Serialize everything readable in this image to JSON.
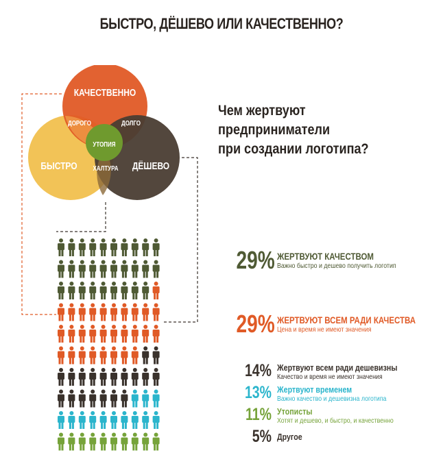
{
  "title": "БЫСТРО, ДЁШЕВО ИЛИ КАЧЕСТВЕННО?",
  "question": [
    "Чем жертвуют предприниматели",
    "при создании логотипа?"
  ],
  "colors": {
    "quality": "#e05a26",
    "fast": "#f1c04e",
    "cheap": "#4a3d33",
    "utopia": "#6f9a2e",
    "olive": "#4f5a34",
    "cyan": "#2bb5cc",
    "green": "#76a33a",
    "dark": "#3a322c"
  },
  "venn": {
    "quality": "КАЧЕСТВЕННО",
    "fast": "БЫСТРО",
    "cheap": "ДЁШЕВО",
    "expensive": "ДОРОГО",
    "long": "ДОЛГО",
    "utopia": "УТОПИЯ",
    "hack": "ХАЛТУРА"
  },
  "chart_data": {
    "type": "pictograph",
    "units": "people (1 icon = 1%)",
    "categories": [
      {
        "percent": "29%",
        "value": 29,
        "label": "ЖЕРТВУЮТ КАЧЕСТВОМ",
        "description": "Важно быстро и дешево получить логотип",
        "color": "#4f5a34"
      },
      {
        "percent": "29%",
        "value": 29,
        "label": "ЖЕРТВУЮТ ВСЕМ РАДИ КАЧЕСТВА",
        "description": "Цена и время не имеют значения",
        "color": "#e05a26"
      },
      {
        "percent": "14%",
        "value": 14,
        "label": "Жертвуют всем ради дешевизны",
        "description": "Качество и время не имеют значения",
        "color": "#3a322c"
      },
      {
        "percent": "13%",
        "value": 13,
        "label": "Жертвуют временем",
        "description": "Важно качество и дешевизна логотипа",
        "color": "#2bb5cc"
      },
      {
        "percent": "11%",
        "value": 11,
        "label": "Утописты",
        "description": "Хотят и дешево, и быстро, и качественно",
        "color": "#76a33a"
      },
      {
        "percent": "5%",
        "value": 5,
        "label": "Другое",
        "description": "",
        "color": "#3a322c"
      }
    ]
  }
}
